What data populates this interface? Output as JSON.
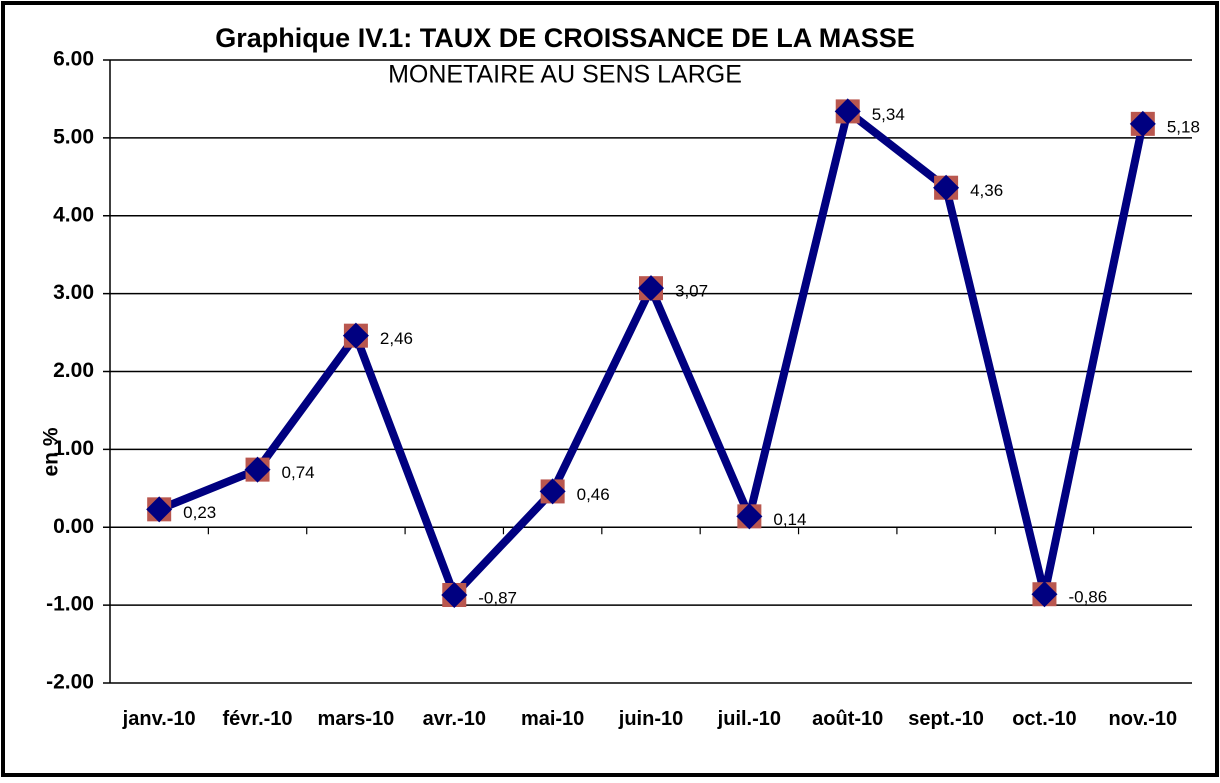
{
  "chart_data": {
    "type": "line",
    "title": "Graphique IV.1: TAUX DE CROISSANCE DE LA MASSE",
    "subtitle": "MONETAIRE AU SENS LARGE",
    "y_label": "en %",
    "categories": [
      "janv.-10",
      "févr.-10",
      "mars-10",
      "avr.-10",
      "mai-10",
      "juin-10",
      "juil.-10",
      "août-10",
      "sept.-10",
      "oct.-10",
      "nov.-10"
    ],
    "values": [
      0.23,
      0.74,
      2.46,
      -0.87,
      0.46,
      3.07,
      0.14,
      5.34,
      4.36,
      -0.86,
      5.18
    ],
    "value_labels": [
      "0,23",
      "0,74",
      "2,46",
      "-0,87",
      "0,46",
      "3,07",
      "0,14",
      "5,34",
      "4,36",
      "-0,86",
      "5,18"
    ],
    "color": "#000080",
    "marker_color": "#b9574f",
    "ylim": [
      -2,
      6
    ],
    "yticks": [
      {
        "value": -2,
        "label": "-2.00"
      },
      {
        "value": -1,
        "label": "-1.00"
      },
      {
        "value": 0,
        "label": "0.00"
      },
      {
        "value": 1,
        "label": "1.00"
      },
      {
        "value": 2,
        "label": "2.00"
      },
      {
        "value": 3,
        "label": "3.00"
      },
      {
        "value": 4,
        "label": "4.00"
      },
      {
        "value": 5,
        "label": "5.00"
      },
      {
        "value": 6,
        "label": "6.00"
      }
    ],
    "grid": true
  }
}
